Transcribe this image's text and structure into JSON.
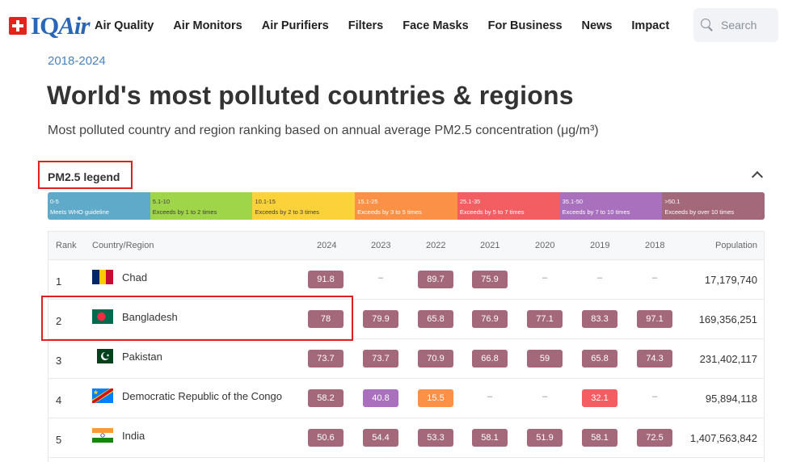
{
  "header": {
    "logo_prefix": "IQ",
    "logo_suffix": "Air",
    "nav": [
      "Air Quality",
      "Air Monitors",
      "Air Purifiers",
      "Filters",
      "Face Masks",
      "For Business",
      "News",
      "Impact"
    ],
    "search_placeholder": "Search"
  },
  "page": {
    "years": "2018-2024",
    "title": "World's most polluted countries & regions",
    "subtitle": "Most polluted country and region ranking based on annual average PM2.5 concentration (μg/m³)"
  },
  "legend": {
    "toggle_label": "PM2.5 legend",
    "segments": [
      {
        "range": "0-5",
        "desc": "Meets WHO guideline",
        "color": "#5fa9c9"
      },
      {
        "range": "5.1-10",
        "desc": "Exceeds by 1 to 2 times",
        "color": "#9fd549"
      },
      {
        "range": "10.1-15",
        "desc": "Exceeds by 2 to 3 times",
        "color": "#fcd23a"
      },
      {
        "range": "15.1-25",
        "desc": "Exceeds by 3 to 5 times",
        "color": "#fb9147"
      },
      {
        "range": "25.1-35",
        "desc": "Exceeds by 5 to 7 times",
        "color": "#f35e62"
      },
      {
        "range": "35.1-50",
        "desc": "Exceeds by 7 to 10 times",
        "color": "#a870bd"
      },
      {
        "range": ">50.1",
        "desc": "Exceeds by over 10 times",
        "color": "#a3687a"
      }
    ]
  },
  "table": {
    "headers": {
      "rank": "Rank",
      "country": "Country/Region",
      "y2024": "2024",
      "y2023": "2023",
      "y2022": "2022",
      "y2021": "2021",
      "y2020": "2020",
      "y2019": "2019",
      "y2018": "2018",
      "population": "Population"
    },
    "rows": [
      {
        "rank": "1",
        "country": "Chad",
        "flag": "chad",
        "values": [
          "91.8",
          "–",
          "89.7",
          "75.9",
          "–",
          "–",
          "–"
        ],
        "population": "17,179,740"
      },
      {
        "rank": "2",
        "country": "Bangladesh",
        "flag": "bangladesh",
        "values": [
          "78",
          "79.9",
          "65.8",
          "76.9",
          "77.1",
          "83.3",
          "97.1"
        ],
        "population": "169,356,251"
      },
      {
        "rank": "3",
        "country": "Pakistan",
        "flag": "pakistan",
        "values": [
          "73.7",
          "73.7",
          "70.9",
          "66.8",
          "59",
          "65.8",
          "74.3"
        ],
        "population": "231,402,117"
      },
      {
        "rank": "4",
        "country": "Democratic Republic of the Congo",
        "flag": "drc",
        "values": [
          "58.2",
          "40.8",
          "15.5",
          "–",
          "–",
          "32.1",
          "–"
        ],
        "population": "95,894,118"
      },
      {
        "rank": "5",
        "country": "India",
        "flag": "india",
        "values": [
          "50.6",
          "54.4",
          "53.3",
          "58.1",
          "51.9",
          "58.1",
          "72.5"
        ],
        "population": "1,407,563,842"
      }
    ]
  }
}
